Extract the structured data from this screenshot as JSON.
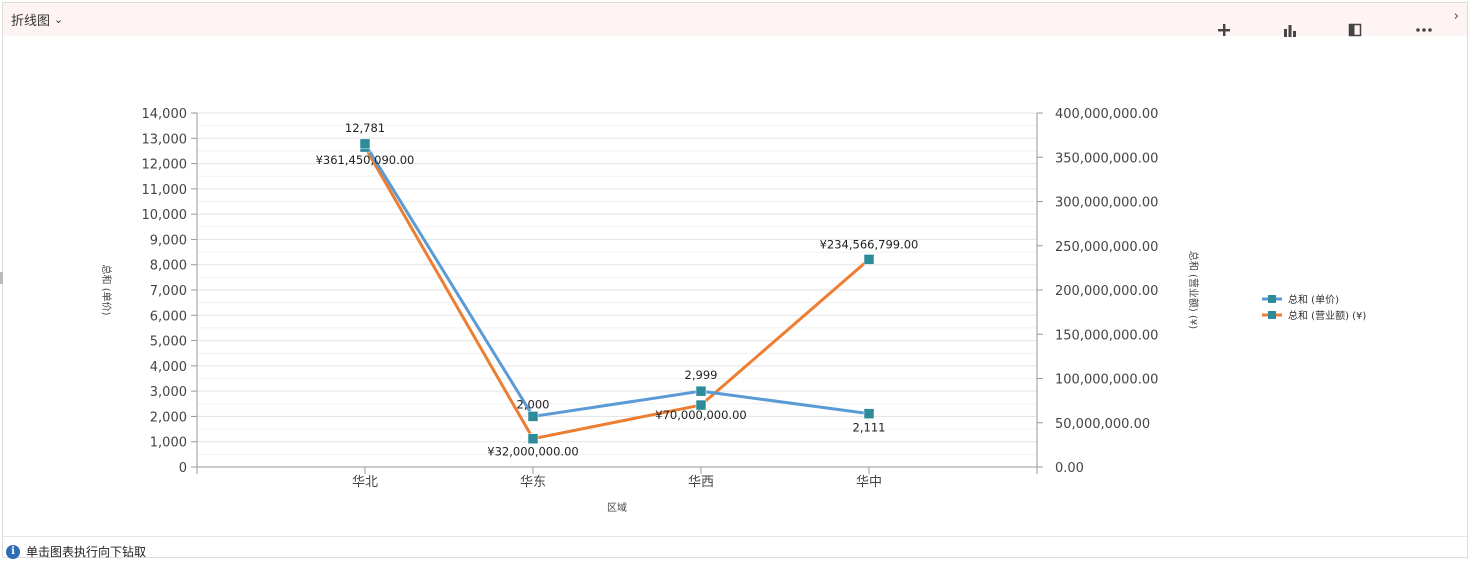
{
  "header": {
    "title": "折线图",
    "icons": [
      "plus-icon",
      "chart-icon",
      "export-icon",
      "more-icon",
      "chevron-right-icon"
    ]
  },
  "footer": {
    "hint": "单击图表执行向下钻取"
  },
  "chart_data": {
    "type": "line",
    "categories": [
      "华北",
      "华东",
      "华西",
      "华中"
    ],
    "xlabel": "区域",
    "y_left": {
      "label": "总和 (单价)",
      "ylim": [
        0,
        14000
      ],
      "ticks": [
        "0",
        "1,000",
        "2,000",
        "3,000",
        "4,000",
        "5,000",
        "6,000",
        "7,000",
        "8,000",
        "9,000",
        "10,000",
        "11,000",
        "12,000",
        "13,000",
        "14,000"
      ]
    },
    "y_right": {
      "label": "总和 (营业额) (¥)",
      "ylim": [
        0,
        400000000
      ],
      "ticks": [
        "0.00",
        "50,000,000.00",
        "100,000,000.00",
        "150,000,000.00",
        "200,000,000.00",
        "250,000,000.00",
        "300,000,000.00",
        "350,000,000.00",
        "400,000,000.00"
      ]
    },
    "series": [
      {
        "name": "总和 (单价)",
        "axis": "left",
        "color": "#5b9bd5",
        "values": [
          12781,
          2000,
          2999,
          2111
        ],
        "labels": [
          "12,781",
          "2,000",
          "2,999",
          "2,111"
        ]
      },
      {
        "name": "总和 (营业额) (¥)",
        "axis": "right",
        "color": "#ed7d31",
        "values": [
          361450090,
          32000000,
          70000000,
          234566799
        ],
        "labels": [
          "¥361,450,090.00",
          "¥32,000,000.00",
          "¥70,000,000.00",
          "¥234,566,799.00"
        ]
      }
    ],
    "marker_color": "#2e8b9a",
    "grid": true,
    "legend_position": "right"
  }
}
